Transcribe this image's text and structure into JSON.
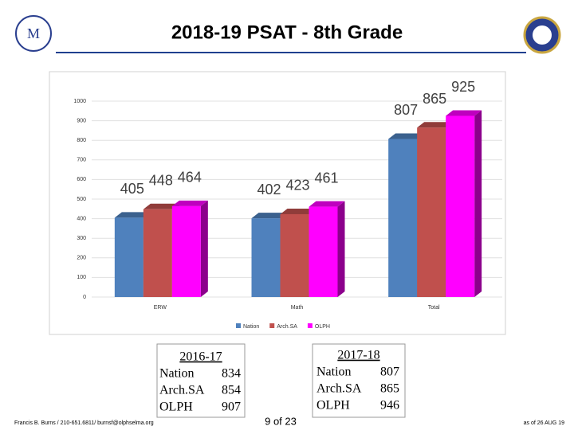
{
  "chart_data": {
    "type": "bar3d",
    "title": "2018-19 PSAT - 8th Grade",
    "categories": [
      "ERW",
      "Math",
      "Total"
    ],
    "series": [
      {
        "name": "Nation",
        "color": "#4f81bd",
        "values": [
          405,
          402,
          807
        ]
      },
      {
        "name": "Arch.SA",
        "color": "#c0504d",
        "values": [
          448,
          423,
          865
        ]
      },
      {
        "name": "OLPH",
        "color": "#ff00ff",
        "values": [
          464,
          461,
          925
        ]
      }
    ],
    "ylim": [
      0,
      1000
    ],
    "yticks": [
      0,
      100,
      200,
      300,
      400,
      500,
      600,
      700,
      800,
      900,
      1000
    ],
    "grid": true,
    "legend": "bottom"
  },
  "tables": [
    {
      "title": "2016-17",
      "rows": [
        [
          "Nation",
          834
        ],
        [
          "Arch.SA",
          854
        ],
        [
          "OLPH",
          907
        ]
      ]
    },
    {
      "title": "2017-18",
      "rows": [
        [
          "Nation",
          807
        ],
        [
          "Arch.SA",
          865
        ],
        [
          "OLPH",
          946
        ]
      ]
    }
  ],
  "footer": {
    "contact": "Francis B. Burns / 210-651.6811/ burnsf@olphselma.org",
    "page": "9 of 23",
    "date": "as of 26 AUG 19"
  }
}
